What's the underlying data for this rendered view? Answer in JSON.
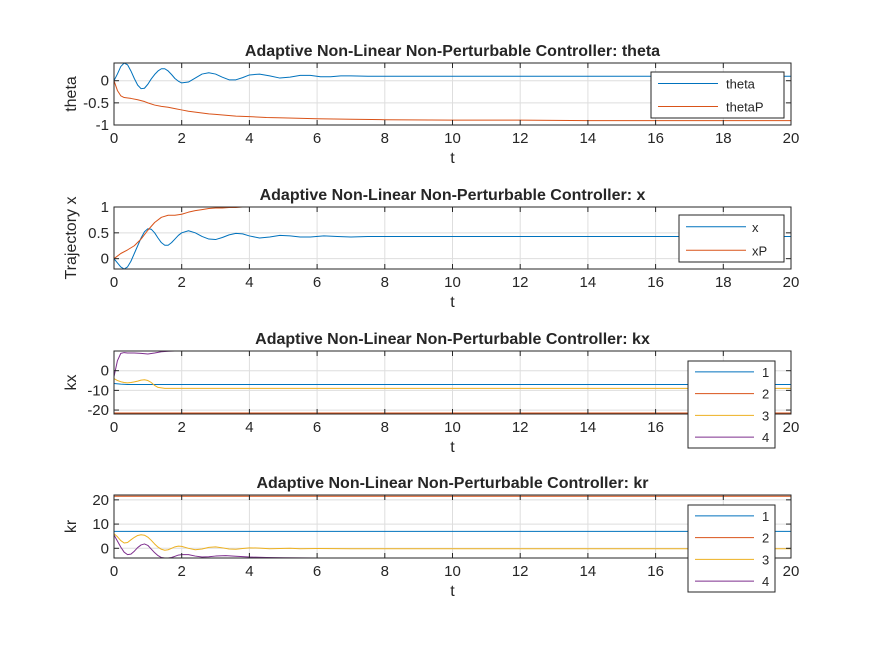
{
  "chart_data": [
    {
      "type": "line",
      "title": "Adaptive Non-Linear Non-Perturbable Controller: theta",
      "xlabel": "t",
      "ylabel": "theta",
      "xlim": [
        0,
        20
      ],
      "ylim": [
        -1,
        0.4
      ],
      "xticks": [
        0,
        2,
        4,
        6,
        8,
        10,
        12,
        14,
        16,
        18,
        20
      ],
      "yticks": [
        -1,
        -0.5,
        0
      ],
      "ytick_labels": [
        "-1",
        "-0.5",
        "0"
      ],
      "grid": true,
      "legend_placement": "top-right",
      "series": [
        {
          "name": "theta",
          "color": "#0072BD",
          "x": [
            0,
            0.1,
            0.2,
            0.3,
            0.4,
            0.5,
            0.6,
            0.7,
            0.8,
            0.9,
            1.0,
            1.1,
            1.2,
            1.3,
            1.4,
            1.5,
            1.6,
            1.7,
            1.8,
            1.9,
            2.0,
            2.2,
            2.4,
            2.6,
            2.8,
            3.0,
            3.2,
            3.4,
            3.6,
            3.8,
            4.0,
            4.3,
            4.6,
            4.9,
            5.2,
            5.5,
            5.8,
            6.1,
            6.4,
            6.7,
            7.0,
            7.5,
            8.0,
            9.0,
            10,
            12,
            14,
            16,
            18,
            20
          ],
          "values": [
            0.0,
            0.15,
            0.32,
            0.4,
            0.36,
            0.22,
            0.05,
            -0.1,
            -0.18,
            -0.17,
            -0.08,
            0.04,
            0.14,
            0.22,
            0.27,
            0.27,
            0.22,
            0.14,
            0.05,
            -0.01,
            -0.05,
            -0.03,
            0.06,
            0.15,
            0.18,
            0.15,
            0.08,
            0.02,
            0.02,
            0.07,
            0.13,
            0.15,
            0.11,
            0.06,
            0.08,
            0.12,
            0.12,
            0.09,
            0.09,
            0.11,
            0.11,
            0.1,
            0.1,
            0.1,
            0.1,
            0.1,
            0.1,
            0.1,
            0.1,
            0.1
          ]
        },
        {
          "name": "thetaP",
          "color": "#D95319",
          "x": [
            0,
            0.1,
            0.2,
            0.3,
            0.5,
            0.7,
            0.9,
            1.0,
            1.2,
            1.4,
            1.6,
            1.8,
            2.0,
            2.2,
            2.4,
            2.6,
            2.8,
            3.0,
            3.3,
            3.6,
            4.0,
            4.5,
            5.0,
            6.0,
            7.0,
            8.0,
            10,
            12,
            14,
            16,
            18,
            20
          ],
          "values": [
            0.0,
            -0.22,
            -0.34,
            -0.38,
            -0.4,
            -0.43,
            -0.47,
            -0.5,
            -0.55,
            -0.58,
            -0.6,
            -0.63,
            -0.66,
            -0.69,
            -0.71,
            -0.73,
            -0.75,
            -0.76,
            -0.78,
            -0.8,
            -0.81,
            -0.83,
            -0.84,
            -0.86,
            -0.87,
            -0.88,
            -0.89,
            -0.89,
            -0.9,
            -0.9,
            -0.9,
            -0.9
          ]
        }
      ]
    },
    {
      "type": "line",
      "title": "Adaptive Non-Linear Non-Perturbable Controller: x",
      "xlabel": "t",
      "ylabel": "Trajectory x",
      "xlim": [
        0,
        20
      ],
      "ylim": [
        -0.2,
        1.0
      ],
      "xticks": [
        0,
        2,
        4,
        6,
        8,
        10,
        12,
        14,
        16,
        18,
        20
      ],
      "yticks": [
        0,
        0.5,
        1
      ],
      "ytick_labels": [
        "0",
        "0.5",
        "1"
      ],
      "grid": true,
      "legend_placement": "top-right",
      "series": [
        {
          "name": "x",
          "color": "#0072BD",
          "x": [
            0,
            0.1,
            0.2,
            0.3,
            0.4,
            0.5,
            0.6,
            0.7,
            0.8,
            0.9,
            1.0,
            1.1,
            1.2,
            1.3,
            1.4,
            1.5,
            1.6,
            1.7,
            1.8,
            1.9,
            2.0,
            2.2,
            2.4,
            2.6,
            2.8,
            3.0,
            3.2,
            3.4,
            3.6,
            3.8,
            4.0,
            4.3,
            4.6,
            4.9,
            5.2,
            5.5,
            5.8,
            6.2,
            6.6,
            7.0,
            7.5,
            8.0,
            9.0,
            10,
            12,
            14,
            16,
            18,
            20
          ],
          "values": [
            0.0,
            -0.08,
            -0.16,
            -0.2,
            -0.16,
            -0.05,
            0.1,
            0.25,
            0.4,
            0.52,
            0.58,
            0.57,
            0.5,
            0.4,
            0.31,
            0.26,
            0.26,
            0.31,
            0.38,
            0.45,
            0.5,
            0.54,
            0.5,
            0.43,
            0.38,
            0.37,
            0.41,
            0.46,
            0.49,
            0.48,
            0.44,
            0.4,
            0.42,
            0.45,
            0.44,
            0.42,
            0.42,
            0.44,
            0.43,
            0.42,
            0.43,
            0.43,
            0.43,
            0.43,
            0.43,
            0.43,
            0.43,
            0.43,
            0.43
          ]
        },
        {
          "name": "xP",
          "color": "#D95319",
          "x": [
            0,
            0.2,
            0.4,
            0.6,
            0.8,
            1.0,
            1.2,
            1.4,
            1.6,
            1.8,
            2.0,
            2.2,
            2.4,
            2.6,
            2.8,
            3.0,
            3.2,
            3.4,
            3.6,
            3.8,
            4.0,
            5.0,
            6.0,
            8.0,
            10,
            12,
            14,
            16,
            18,
            20
          ],
          "values": [
            0.0,
            0.1,
            0.17,
            0.25,
            0.38,
            0.55,
            0.7,
            0.8,
            0.84,
            0.84,
            0.86,
            0.9,
            0.93,
            0.95,
            0.97,
            0.98,
            0.98,
            0.99,
            0.99,
            1.0,
            1.0,
            1.0,
            1.0,
            1.0,
            1.0,
            1.0,
            1.0,
            1.0,
            1.0,
            1.0
          ]
        }
      ]
    },
    {
      "type": "line",
      "title": "Adaptive Non-Linear Non-Perturbable Controller: kx",
      "xlabel": "t",
      "ylabel": "kx",
      "xlim": [
        0,
        20
      ],
      "ylim": [
        -22,
        10
      ],
      "xticks": [
        0,
        2,
        4,
        6,
        8,
        10,
        12,
        14,
        16,
        18,
        20
      ],
      "xtick_labels": [
        "0",
        "2",
        "4",
        "6",
        "8",
        "10",
        "12",
        "14",
        "16",
        "",
        "20"
      ],
      "yticks": [
        -20,
        -10,
        0
      ],
      "ytick_labels": [
        "-20",
        "-10",
        "0"
      ],
      "grid": true,
      "legend_placement": "right",
      "series": [
        {
          "name": "1",
          "color": "#0072BD",
          "x": [
            0,
            0.2,
            0.4,
            0.6,
            1.0,
            2.0,
            5.0,
            10,
            15,
            20
          ],
          "values": [
            -6.5,
            -6.8,
            -7.0,
            -7.0,
            -7.0,
            -7.0,
            -7.0,
            -7.0,
            -7.0,
            -7.0
          ]
        },
        {
          "name": "2",
          "color": "#D95319",
          "x": [
            0,
            5,
            10,
            15,
            20
          ],
          "values": [
            -21.5,
            -21.5,
            -21.5,
            -21.5,
            -21.5
          ]
        },
        {
          "name": "3",
          "color": "#EDB120",
          "x": [
            0,
            0.1,
            0.2,
            0.3,
            0.4,
            0.5,
            0.6,
            0.7,
            0.8,
            0.9,
            1.0,
            1.1,
            1.2,
            1.3,
            1.5,
            1.8,
            2.0,
            3.0,
            5.0,
            10,
            15,
            20
          ],
          "values": [
            -4.0,
            -5.0,
            -5.6,
            -6.0,
            -6.2,
            -6.0,
            -5.7,
            -5.3,
            -4.8,
            -4.6,
            -5.0,
            -6.0,
            -7.5,
            -8.5,
            -9.0,
            -9.0,
            -9.0,
            -9.0,
            -9.0,
            -9.0,
            -9.0,
            -9.0
          ]
        },
        {
          "name": "4",
          "color": "#7E2F8E",
          "x": [
            0,
            0.1,
            0.2,
            0.3,
            0.4,
            0.6,
            0.8,
            1.0,
            1.2,
            1.4,
            1.6,
            1.8,
            2.0,
            2.5,
            3.0,
            4.0,
            6.0,
            10,
            15,
            20
          ],
          "values": [
            -3.0,
            5.0,
            8.8,
            9.2,
            9.0,
            9.0,
            8.8,
            8.5,
            9.0,
            9.6,
            9.9,
            10.0,
            10.0,
            10.0,
            10.0,
            10.0,
            10.0,
            10.0,
            10.0,
            10.0
          ]
        }
      ]
    },
    {
      "type": "line",
      "title": "Adaptive Non-Linear Non-Perturbable Controller: kr",
      "xlabel": "t",
      "ylabel": "kr",
      "xlim": [
        0,
        20
      ],
      "ylim": [
        -4,
        22
      ],
      "xticks": [
        0,
        2,
        4,
        6,
        8,
        10,
        12,
        14,
        16,
        18,
        20
      ],
      "xtick_labels": [
        "0",
        "2",
        "4",
        "6",
        "8",
        "10",
        "12",
        "14",
        "16",
        "",
        "20"
      ],
      "yticks": [
        0,
        10,
        20
      ],
      "ytick_labels": [
        "0",
        "10",
        "20"
      ],
      "grid": true,
      "legend_placement": "right",
      "series": [
        {
          "name": "1",
          "color": "#0072BD",
          "x": [
            0,
            5,
            10,
            15,
            20
          ],
          "values": [
            7.0,
            7.0,
            7.0,
            7.0,
            7.0
          ]
        },
        {
          "name": "2",
          "color": "#D95319",
          "x": [
            0,
            5,
            10,
            15,
            20
          ],
          "values": [
            21.5,
            21.5,
            21.5,
            21.5,
            21.5
          ]
        },
        {
          "name": "3",
          "color": "#EDB120",
          "x": [
            0,
            0.1,
            0.2,
            0.3,
            0.4,
            0.5,
            0.6,
            0.7,
            0.8,
            0.9,
            1.0,
            1.1,
            1.2,
            1.3,
            1.4,
            1.5,
            1.6,
            1.7,
            1.8,
            1.9,
            2.0,
            2.2,
            2.4,
            2.6,
            2.8,
            3.0,
            3.2,
            3.4,
            3.6,
            3.8,
            4.0,
            4.3,
            4.6,
            4.9,
            5.2,
            5.5,
            6.0,
            7.0,
            8.0,
            10,
            15,
            20
          ],
          "values": [
            6.0,
            4.8,
            3.2,
            2.2,
            2.4,
            3.5,
            4.5,
            5.3,
            5.6,
            5.4,
            4.6,
            3.3,
            1.8,
            0.5,
            -0.4,
            -0.8,
            -0.6,
            0.0,
            0.6,
            0.9,
            0.8,
            0.0,
            -0.6,
            -0.3,
            0.4,
            0.6,
            0.2,
            -0.3,
            -0.4,
            -0.1,
            0.2,
            0.1,
            -0.2,
            -0.1,
            0.0,
            -0.2,
            -0.1,
            -0.2,
            -0.2,
            -0.2,
            -0.2,
            -0.2
          ]
        },
        {
          "name": "4",
          "color": "#7E2F8E",
          "x": [
            0,
            0.1,
            0.2,
            0.3,
            0.4,
            0.5,
            0.6,
            0.7,
            0.8,
            0.9,
            1.0,
            1.1,
            1.2,
            1.3,
            1.4,
            1.5,
            1.6,
            1.7,
            1.8,
            1.9,
            2.0,
            2.2,
            2.4,
            2.6,
            2.8,
            3.0,
            3.3,
            3.6,
            4.0,
            4.5,
            5.0,
            6.0,
            8.0,
            10,
            15,
            20
          ],
          "values": [
            5.5,
            3.0,
            0.5,
            -1.6,
            -2.6,
            -2.4,
            -1.2,
            0.3,
            1.4,
            1.8,
            1.2,
            -0.3,
            -1.8,
            -3.0,
            -3.8,
            -4.0,
            -4.0,
            -3.8,
            -3.3,
            -2.8,
            -2.6,
            -2.6,
            -3.2,
            -3.6,
            -3.5,
            -3.2,
            -3.0,
            -3.3,
            -3.6,
            -3.8,
            -3.9,
            -4.0,
            -4.0,
            -4.0,
            -4.0,
            -4.0
          ]
        }
      ]
    }
  ]
}
